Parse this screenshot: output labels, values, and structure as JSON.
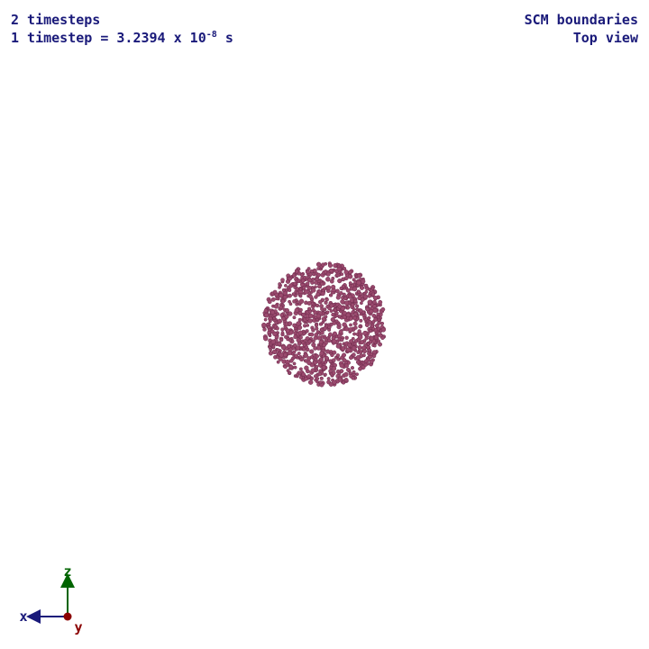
{
  "header_left": {
    "timesteps": "2 timesteps",
    "timestep_prefix": "1 timestep = 3.2394 x 10",
    "timestep_exponent": "-8",
    "timestep_unit": " s"
  },
  "header_right": {
    "title": "SCM boundaries",
    "view": "Top view"
  },
  "axes": {
    "x_label": "x",
    "y_label": "y",
    "z_label": "z",
    "x_color": "#1a1a7a",
    "y_color": "#8b0000",
    "z_color": "#006400"
  },
  "particles": {
    "color": "#9a4a6e",
    "edge_color": "#6e2a4c"
  }
}
